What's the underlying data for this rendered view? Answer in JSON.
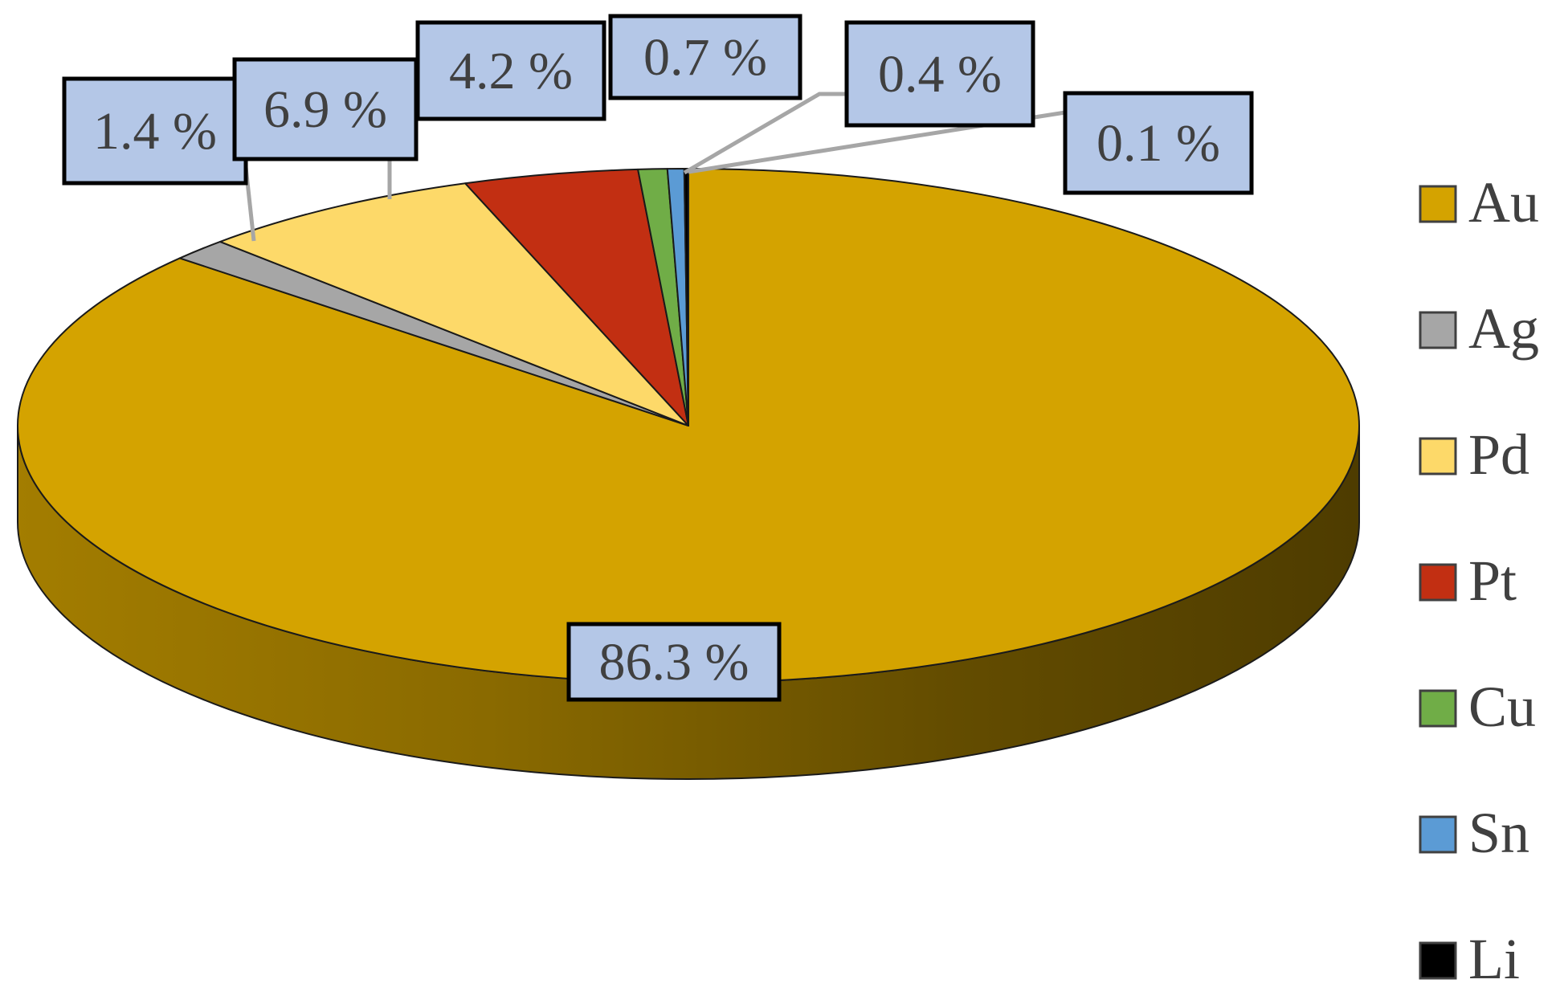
{
  "chart_data": {
    "type": "pie",
    "style": "3d",
    "title": "",
    "slices": [
      {
        "name": "Au",
        "value": 86.3,
        "label": "86.3 %",
        "color": "#D4A300"
      },
      {
        "name": "Ag",
        "value": 1.4,
        "label": "1.4 %",
        "color": "#A6A6A6"
      },
      {
        "name": "Pd",
        "value": 6.9,
        "label": "6.9 %",
        "color": "#FDD969"
      },
      {
        "name": "Pt",
        "value": 4.2,
        "label": "4.2 %",
        "color": "#C22F12"
      },
      {
        "name": "Cu",
        "value": 0.7,
        "label": "0.7 %",
        "color": "#70AD47"
      },
      {
        "name": "Sn",
        "value": 0.4,
        "label": "0.4 %",
        "color": "#5B9BD5"
      },
      {
        "name": "Li",
        "value": 0.1,
        "label": "0.1 %",
        "color": "#000000"
      }
    ],
    "label_box_color": "#B4C7E7",
    "legend_position": "right"
  }
}
